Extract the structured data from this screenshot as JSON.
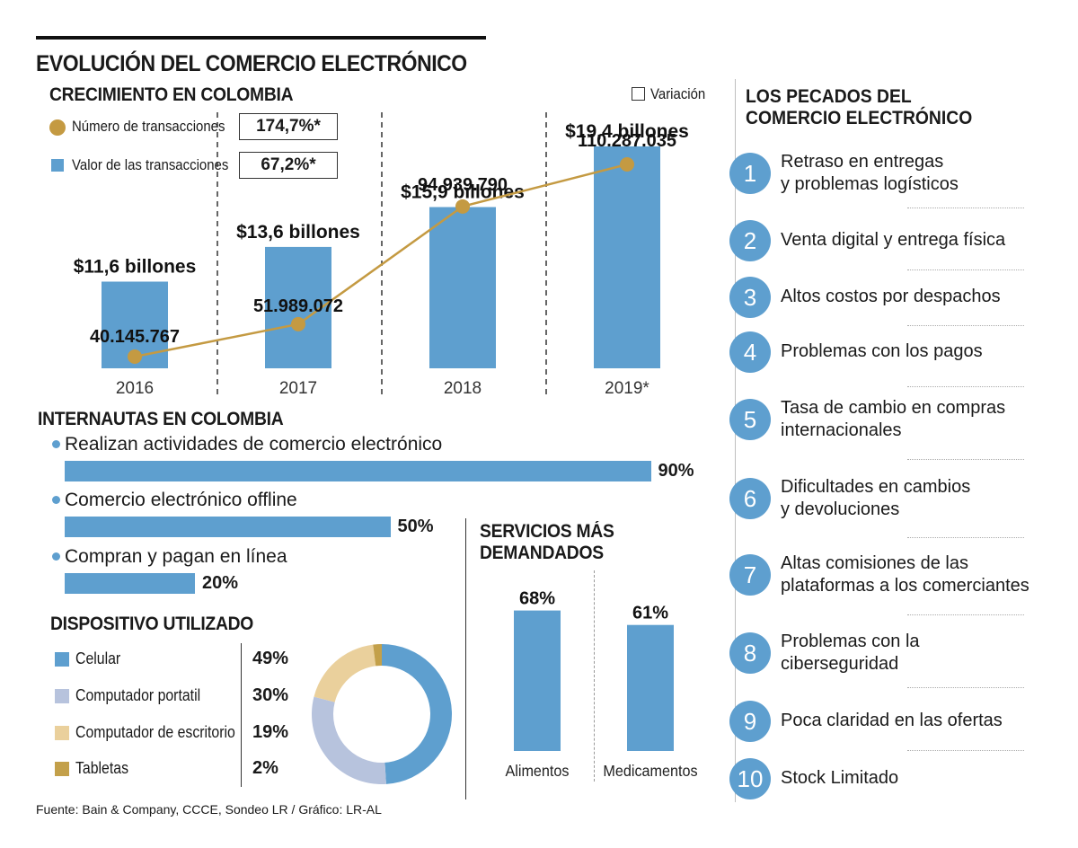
{
  "title": "EVOLUCIÓN DEL COMERCIO ELECTRÓNICO",
  "growth": {
    "title": "CRECIMIENTO EN COLOMBIA",
    "variation_legend": "Variación",
    "legend_transactions": "Número de transacciones",
    "legend_value": "Valor de las transacciones",
    "var_transactions": "174,7%*",
    "var_value": "67,2%*"
  },
  "internautas": {
    "title": "INTERNAUTAS EN COLOMBIA",
    "items": [
      {
        "label": "Realizan actividades de comercio electrónico",
        "value": 90,
        "display": "90%"
      },
      {
        "label": "Comercio electrónico offline",
        "value": 50,
        "display": "50%"
      },
      {
        "label": "Compran y pagan en línea",
        "value": 20,
        "display": "20%"
      }
    ]
  },
  "devices": {
    "title": "DISPOSITIVO UTILIZADO",
    "items": [
      {
        "label": "Celular",
        "value": 49,
        "display": "49%",
        "color": "#5e9fcf"
      },
      {
        "label": "Computador portatil",
        "value": 30,
        "display": "30%",
        "color": "#b7c3dd"
      },
      {
        "label": "Computador de escritorio",
        "value": 19,
        "display": "19%",
        "color": "#ead09c"
      },
      {
        "label": "Tabletas",
        "value": 2,
        "display": "2%",
        "color": "#c3a04a"
      }
    ]
  },
  "services": {
    "title_line1": "SERVICIOS MÁS",
    "title_line2": "DEMANDADOS",
    "items": [
      {
        "label": "Alimentos",
        "value": 68,
        "display": "68%"
      },
      {
        "label": "Medicamentos",
        "value": 61,
        "display": "61%"
      }
    ]
  },
  "sins": {
    "title_line1": "LOS PECADOS DEL",
    "title_line2": "COMERCIO ELECTRÓNICO",
    "items": [
      {
        "num": "1",
        "line1": "Retraso en entregas",
        "line2": "y problemas logísticos"
      },
      {
        "num": "2",
        "line1": "Venta digital y entrega física",
        "line2": ""
      },
      {
        "num": "3",
        "line1": "Altos costos por despachos",
        "line2": ""
      },
      {
        "num": "4",
        "line1": "Problemas con los pagos",
        "line2": ""
      },
      {
        "num": "5",
        "line1": "Tasa de cambio en compras",
        "line2": "internacionales"
      },
      {
        "num": "6",
        "line1": "Dificultades en cambios",
        "line2": "y devoluciones"
      },
      {
        "num": "7",
        "line1": "Altas comisiones de las",
        "line2": "plataformas a los comerciantes"
      },
      {
        "num": "8",
        "line1": "Problemas con la",
        "line2": "ciberseguridad"
      },
      {
        "num": "9",
        "line1": "Poca claridad en las ofertas",
        "line2": ""
      },
      {
        "num": "10",
        "line1": "Stock Limitado",
        "line2": ""
      }
    ]
  },
  "source": "Fuente: Bain & Company, CCCE, Sondeo LR  / Gráfico: LR-AL",
  "colors": {
    "bar": "#5e9fcf",
    "line": "#c49a42"
  },
  "chart_data": [
    {
      "type": "bar",
      "title": "CRECIMIENTO EN COLOMBIA",
      "categories": [
        "2016",
        "2017",
        "2018",
        "2019*"
      ],
      "series": [
        {
          "name": "Valor de las transacciones",
          "values": [
            11.6,
            13.6,
            15.9,
            19.4
          ],
          "labels": [
            "$11,6 billones",
            "$13,6 billones",
            "$15,9 billones",
            "$19,4 billones"
          ]
        },
        {
          "name": "Número de transacciones",
          "type": "line",
          "values": [
            40145767,
            51989072,
            94939790,
            110287035
          ],
          "labels": [
            "40.145.767",
            "51.989.072",
            "94.939.790",
            "110.287.035"
          ]
        }
      ]
    },
    {
      "type": "bar",
      "title": "INTERNAUTAS EN COLOMBIA",
      "categories": [
        "Realizan actividades de comercio electrónico",
        "Comercio electrónico offline",
        "Compran y pagan en línea"
      ],
      "values": [
        90,
        50,
        20
      ]
    },
    {
      "type": "pie",
      "title": "DISPOSITIVO UTILIZADO",
      "categories": [
        "Celular",
        "Computador portatil",
        "Computador de escritorio",
        "Tabletas"
      ],
      "values": [
        49,
        30,
        19,
        2
      ]
    },
    {
      "type": "bar",
      "title": "SERVICIOS MÁS DEMANDADOS",
      "categories": [
        "Alimentos",
        "Medicamentos"
      ],
      "values": [
        68,
        61
      ]
    }
  ]
}
